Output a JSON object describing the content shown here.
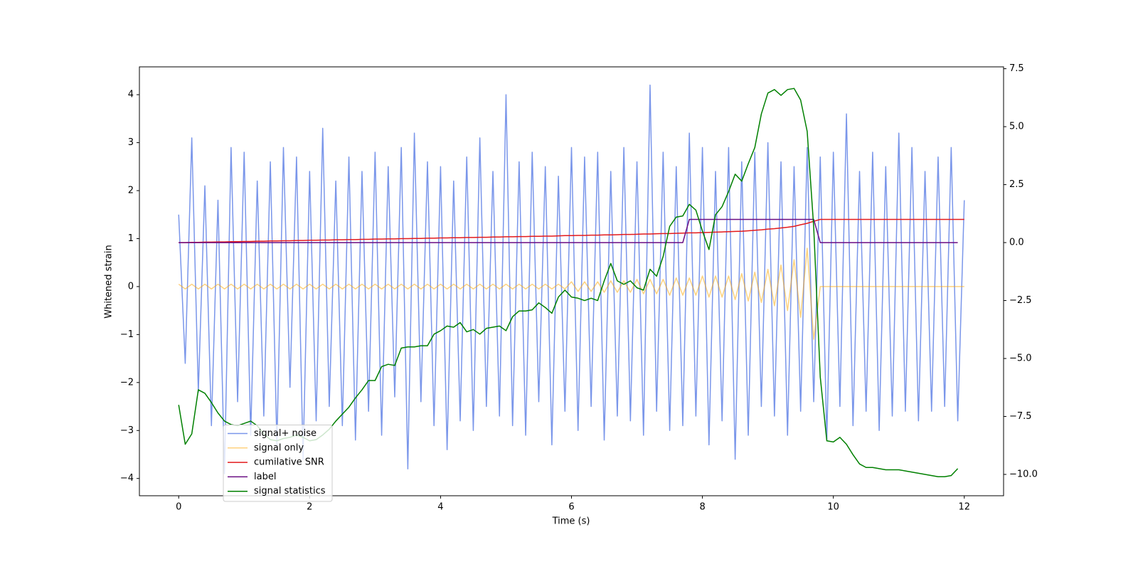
{
  "chart_data": {
    "type": "line",
    "x_label": "Time (s)",
    "y_label": "Whitened strain",
    "xlim": [
      -0.6,
      12.6
    ],
    "xticks": [
      0,
      2,
      4,
      6,
      8,
      10,
      12
    ],
    "ylim": [
      -4.36,
      4.58
    ],
    "yticks": [
      {
        "value": -4,
        "label": "−4"
      },
      {
        "value": -3,
        "label": "−3"
      },
      {
        "value": -2,
        "label": "−2"
      },
      {
        "value": -1,
        "label": "−1"
      },
      0,
      1,
      2,
      3,
      4
    ],
    "y2lim": [
      -10.92,
      7.58
    ],
    "y2ticks": [
      {
        "value": -10,
        "label": "−10.0"
      },
      {
        "value": -7.5,
        "label": "−7.5"
      },
      {
        "value": -5,
        "label": "−5.0"
      },
      {
        "value": -2.5,
        "label": "−2.5"
      },
      {
        "value": 0,
        "label": "0.0"
      },
      2.5,
      {
        "value": 5,
        "label": "5.0"
      },
      7.5
    ],
    "grid": false,
    "legend": "lower left",
    "x": [
      0,
      0.1,
      0.2,
      0.3,
      0.4,
      0.5,
      0.6,
      0.7,
      0.8,
      0.9,
      1,
      1.1,
      1.2,
      1.3,
      1.4,
      1.5,
      1.6,
      1.7,
      1.8,
      1.9,
      2,
      2.1,
      2.2,
      2.3,
      2.4,
      2.5,
      2.6,
      2.7,
      2.8,
      2.9,
      3,
      3.1,
      3.2,
      3.3,
      3.4,
      3.5,
      3.6,
      3.7,
      3.8,
      3.9,
      4,
      4.1,
      4.2,
      4.3,
      4.4,
      4.5,
      4.6,
      4.7,
      4.8,
      4.9,
      5,
      5.1,
      5.2,
      5.3,
      5.4,
      5.5,
      5.6,
      5.7,
      5.8,
      5.9,
      6,
      6.1,
      6.2,
      6.3,
      6.4,
      6.5,
      6.6,
      6.7,
      6.8,
      6.9,
      7,
      7.1,
      7.2,
      7.3,
      7.4,
      7.5,
      7.6,
      7.7,
      7.8,
      7.9,
      8,
      8.1,
      8.2,
      8.3,
      8.4,
      8.5,
      8.6,
      8.7,
      8.8,
      8.9,
      9,
      9.1,
      9.2,
      9.3,
      9.4,
      9.5,
      9.6,
      9.7,
      9.8,
      9.9,
      10,
      10.1,
      10.2,
      10.3,
      10.4,
      10.5,
      10.6,
      10.7,
      10.8,
      10.9,
      11,
      11.1,
      11.2,
      11.3,
      11.4,
      11.5,
      11.6,
      11.7,
      11.8,
      11.9,
      12
    ],
    "series": [
      {
        "name": "signal+ noise",
        "color": "#4169e1",
        "alpha": 0.7,
        "axis": "y",
        "values": [
          1.5,
          -1.6,
          3.1,
          -2.2,
          2.1,
          -2.9,
          1.8,
          -3.9,
          2.9,
          -2.4,
          2.8,
          -3.1,
          2.2,
          -2.7,
          2.6,
          -3.3,
          2.9,
          -2.1,
          2.7,
          -3.6,
          2.4,
          -2.8,
          3.3,
          -2.5,
          2.2,
          -2.9,
          2.7,
          -3.2,
          2.4,
          -2.6,
          2.8,
          -3.1,
          2.5,
          -2.3,
          2.9,
          -3.8,
          3.2,
          -2.4,
          2.6,
          -2.9,
          2.5,
          -3.4,
          2.2,
          -2.8,
          2.7,
          -3.0,
          3.1,
          -2.5,
          2.4,
          -2.7,
          4.0,
          -2.9,
          2.6,
          -3.1,
          2.8,
          -2.4,
          2.5,
          -3.3,
          2.3,
          -2.6,
          2.9,
          -3.0,
          2.7,
          -2.5,
          2.8,
          -3.2,
          2.4,
          -2.7,
          2.9,
          -2.8,
          2.6,
          -3.1,
          4.2,
          -2.6,
          2.8,
          -3.0,
          2.5,
          -2.9,
          3.2,
          -2.7,
          2.9,
          -3.3,
          2.4,
          -2.8,
          2.9,
          -3.6,
          2.6,
          -3.1,
          2.8,
          -2.5,
          3.0,
          -2.7,
          2.6,
          -3.1,
          2.5,
          -2.6,
          2.9,
          -2.4,
          2.7,
          -3.2,
          2.8,
          -2.5,
          3.6,
          -2.9,
          2.4,
          -2.6,
          2.8,
          -3.0,
          2.5,
          -2.7,
          3.2,
          -2.6,
          2.9,
          -2.8,
          2.4,
          -2.6,
          2.7,
          -2.5,
          2.9,
          -2.8,
          1.8
        ]
      },
      {
        "name": "signal only",
        "color": "#ffa500",
        "alpha": 0.5,
        "axis": "y",
        "values": [
          0.05,
          -0.05,
          0.05,
          -0.05,
          0.05,
          -0.05,
          0.05,
          -0.05,
          0.05,
          -0.05,
          0.05,
          -0.05,
          0.05,
          -0.05,
          0.05,
          -0.05,
          0.05,
          -0.05,
          0.05,
          -0.05,
          0.05,
          -0.05,
          0.05,
          -0.05,
          0.05,
          -0.05,
          0.05,
          -0.05,
          0.05,
          -0.05,
          0.05,
          -0.05,
          0.05,
          -0.05,
          0.05,
          -0.05,
          0.05,
          -0.05,
          0.05,
          -0.05,
          0.05,
          -0.05,
          0.05,
          -0.05,
          0.05,
          -0.05,
          0.05,
          -0.05,
          0.05,
          -0.05,
          0.05,
          -0.05,
          0.05,
          -0.05,
          0.05,
          -0.05,
          0.05,
          -0.05,
          0.05,
          -0.05,
          0.1,
          -0.1,
          0.1,
          -0.1,
          0.1,
          -0.12,
          0.12,
          -0.12,
          0.12,
          -0.12,
          0.15,
          -0.15,
          0.15,
          -0.15,
          0.15,
          -0.18,
          0.18,
          -0.18,
          0.18,
          -0.18,
          0.22,
          -0.22,
          0.22,
          -0.22,
          0.22,
          -0.27,
          0.27,
          -0.3,
          0.3,
          -0.33,
          0.36,
          -0.4,
          0.45,
          -0.5,
          0.56,
          -0.64,
          0.8,
          -1.1,
          0,
          0,
          0,
          0,
          0,
          0,
          0,
          0,
          0,
          0,
          0,
          0,
          0,
          0,
          0,
          0,
          0,
          0,
          0,
          0,
          0,
          0,
          0
        ]
      },
      {
        "name": "cumilative SNR",
        "color": "#e31a1c",
        "alpha": 1,
        "axis": "y2",
        "values": [
          0,
          0,
          0.01,
          0.01,
          0.02,
          0.02,
          0.03,
          0.03,
          0.04,
          0.04,
          0.05,
          0.05,
          0.06,
          0.06,
          0.07,
          0.07,
          0.08,
          0.08,
          0.09,
          0.09,
          0.1,
          0.1,
          0.11,
          0.11,
          0.12,
          0.12,
          0.13,
          0.13,
          0.14,
          0.14,
          0.15,
          0.15,
          0.16,
          0.16,
          0.17,
          0.17,
          0.18,
          0.18,
          0.19,
          0.19,
          0.2,
          0.2,
          0.21,
          0.21,
          0.22,
          0.22,
          0.23,
          0.23,
          0.24,
          0.24,
          0.25,
          0.25,
          0.26,
          0.26,
          0.27,
          0.27,
          0.28,
          0.28,
          0.29,
          0.3,
          0.3,
          0.31,
          0.31,
          0.32,
          0.32,
          0.33,
          0.33,
          0.34,
          0.35,
          0.35,
          0.36,
          0.37,
          0.37,
          0.38,
          0.39,
          0.39,
          0.4,
          0.41,
          0.42,
          0.42,
          0.43,
          0.44,
          0.45,
          0.46,
          0.47,
          0.48,
          0.49,
          0.51,
          0.53,
          0.55,
          0.58,
          0.6,
          0.63,
          0.66,
          0.7,
          0.77,
          0.83,
          0.92,
          1,
          1,
          1,
          1,
          1,
          1,
          1,
          1,
          1,
          1,
          1,
          1,
          1,
          1,
          1,
          1,
          1,
          1,
          1,
          1,
          1,
          1,
          1
        ]
      },
      {
        "name": "label",
        "color": "#6a0d83",
        "alpha": 1,
        "axis": "y2",
        "values": [
          0,
          0,
          0,
          0,
          0,
          0,
          0,
          0,
          0,
          0,
          0,
          0,
          0,
          0,
          0,
          0,
          0,
          0,
          0,
          0,
          0,
          0,
          0,
          0,
          0,
          0,
          0,
          0,
          0,
          0,
          0,
          0,
          0,
          0,
          0,
          0,
          0,
          0,
          0,
          0,
          0,
          0,
          0,
          0,
          0,
          0,
          0,
          0,
          0,
          0,
          0,
          0,
          0,
          0,
          0,
          0,
          0,
          0,
          0,
          0,
          0,
          0,
          0,
          0,
          0,
          0,
          0,
          0,
          0,
          0,
          0,
          0,
          0,
          0,
          0,
          0,
          0,
          0,
          1,
          1,
          1,
          1,
          1,
          1,
          1,
          1,
          1,
          1,
          1,
          1,
          1,
          1,
          1,
          1,
          1,
          1,
          1,
          1,
          0,
          0,
          0,
          0,
          0,
          0,
          0,
          0,
          0,
          0,
          0,
          0,
          0,
          0,
          0,
          0,
          0,
          0,
          0,
          0,
          0,
          0,
          null
        ]
      },
      {
        "name": "signal statistics",
        "color": "#008000",
        "alpha": 1,
        "axis": "y2",
        "values": [
          -7.0,
          -8.7,
          -8.25,
          -6.35,
          -6.5,
          -6.9,
          -7.35,
          -7.7,
          -7.85,
          -7.9,
          -7.8,
          -7.7,
          -7.9,
          -8.25,
          -8.5,
          -8.55,
          -8.45,
          -8.4,
          -8.3,
          -8.4,
          -8.55,
          -8.5,
          -8.3,
          -8.05,
          -7.7,
          -7.4,
          -7.1,
          -6.7,
          -6.35,
          -5.95,
          -5.95,
          -5.35,
          -5.25,
          -5.3,
          -4.55,
          -4.5,
          -4.5,
          -4.45,
          -4.45,
          -3.95,
          -3.8,
          -3.6,
          -3.65,
          -3.45,
          -3.85,
          -3.75,
          -3.95,
          -3.7,
          -3.65,
          -3.6,
          -3.8,
          -3.2,
          -2.95,
          -2.95,
          -2.9,
          -2.6,
          -2.8,
          -3.05,
          -2.35,
          -2.05,
          -2.35,
          -2.4,
          -2.5,
          -2.4,
          -2.5,
          -1.65,
          -0.9,
          -1.65,
          -1.8,
          -1.65,
          -1.95,
          -2.05,
          -1.15,
          -1.45,
          -0.6,
          0.7,
          1.1,
          1.15,
          1.65,
          1.4,
          0.5,
          -0.3,
          1.2,
          1.55,
          2.2,
          2.95,
          2.65,
          3.4,
          4.1,
          5.55,
          6.45,
          6.6,
          6.35,
          6.6,
          6.65,
          6.15,
          4.8,
          0.65,
          -5.8,
          -8.55,
          -8.6,
          -8.4,
          -8.7,
          -9.15,
          -9.55,
          -9.7,
          -9.7,
          -9.75,
          -9.8,
          -9.8,
          -9.8,
          -9.85,
          -9.9,
          -9.95,
          -10.0,
          -10.05,
          -10.1,
          -10.1,
          -10.05,
          -9.75,
          null
        ]
      }
    ]
  }
}
